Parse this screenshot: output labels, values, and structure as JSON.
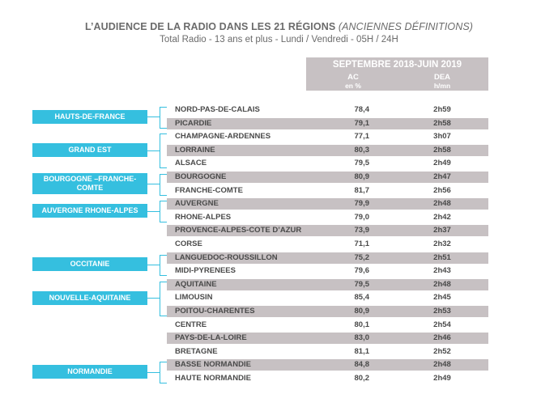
{
  "chart_data": {
    "type": "table",
    "title": "L’AUDIENCE DE LA RADIO DANS LES 21 RÉGIONS",
    "title_note": "(ANCIENNES  DÉFINITIONS)",
    "subtitle": "Total Radio - 13 ans et plus - Lundi / Vendredi - 05H / 24H",
    "period": "SEPTEMBRE 2018-JUIN 2019",
    "columns": [
      {
        "label": "AC",
        "unit": "en %"
      },
      {
        "label": "DEA",
        "unit": "h/mn"
      }
    ],
    "rows": [
      {
        "name": "NORD-PAS-DE-CALAIS",
        "ac": "78,4",
        "dea": "2h59"
      },
      {
        "name": "PICARDIE",
        "ac": "79,1",
        "dea": "2h58"
      },
      {
        "name": "CHAMPAGNE-ARDENNES",
        "ac": "77,1",
        "dea": "3h07"
      },
      {
        "name": "LORRAINE",
        "ac": "80,3",
        "dea": "2h58"
      },
      {
        "name": "ALSACE",
        "ac": "79,5",
        "dea": "2h49"
      },
      {
        "name": "BOURGOGNE",
        "ac": "80,9",
        "dea": "2h47"
      },
      {
        "name": "FRANCHE-COMTE",
        "ac": "81,7",
        "dea": "2h56"
      },
      {
        "name": "AUVERGNE",
        "ac": "79,9",
        "dea": "2h48"
      },
      {
        "name": "RHONE-ALPES",
        "ac": "79,0",
        "dea": "2h42"
      },
      {
        "name": "PROVENCE-ALPES-COTE D’AZUR",
        "ac": "73,9",
        "dea": "2h37"
      },
      {
        "name": "CORSE",
        "ac": "71,1",
        "dea": "2h32"
      },
      {
        "name": "LANGUEDOC-ROUSSILLON",
        "ac": "75,2",
        "dea": "2h51"
      },
      {
        "name": "MIDI-PYRENEES",
        "ac": "79,6",
        "dea": "2h43"
      },
      {
        "name": "AQUITAINE",
        "ac": "79,5",
        "dea": "2h48"
      },
      {
        "name": "LIMOUSIN",
        "ac": "85,4",
        "dea": "2h45"
      },
      {
        "name": "POITOU-CHARENTES",
        "ac": "80,9",
        "dea": "2h53"
      },
      {
        "name": "CENTRE",
        "ac": "80,1",
        "dea": "2h54"
      },
      {
        "name": "PAYS-DE-LA-LOIRE",
        "ac": "83,0",
        "dea": "2h46"
      },
      {
        "name": "BRETAGNE",
        "ac": "81,1",
        "dea": "2h52"
      },
      {
        "name": "BASSE NORMANDIE",
        "ac": "84,8",
        "dea": "2h48"
      },
      {
        "name": "HAUTE NORMANDIE",
        "ac": "80,2",
        "dea": "2h49"
      }
    ],
    "new_regions": [
      {
        "label": "HAUTS-DE-FRANCE",
        "rows": [
          0,
          1
        ]
      },
      {
        "label": "GRAND EST",
        "rows": [
          2,
          4
        ]
      },
      {
        "label": "BOURGOGNE –FRANCHE-COMTE",
        "rows": [
          5,
          6
        ]
      },
      {
        "label": "AUVERGNE RHONE-ALPES",
        "rows": [
          7,
          8
        ]
      },
      {
        "label": "OCCITANIE",
        "rows": [
          11,
          12
        ]
      },
      {
        "label": "NOUVELLE-AQUITAINE",
        "rows": [
          13,
          15
        ]
      },
      {
        "label": "NORMANDIE",
        "rows": [
          19,
          20
        ]
      }
    ]
  },
  "colors": {
    "accent": "#35bfdf",
    "row_shade": "#c7c1c3",
    "text": "#4a4a4a",
    "title": "#6b6b6b"
  }
}
